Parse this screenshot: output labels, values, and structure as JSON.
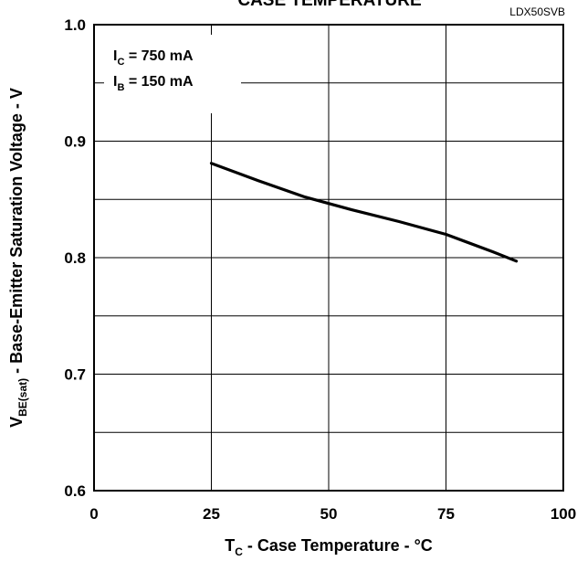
{
  "chart_data": {
    "type": "line",
    "title": "CASE TEMPERATURE",
    "code": "LDX50SVB",
    "xlabel": {
      "main": "T",
      "sub": "C",
      "rest": " - Case Temperature - °C"
    },
    "ylabel": {
      "main": "V",
      "sub": "BE(sat)",
      "rest": " - Base-Emitter Saturation Voltage - V"
    },
    "xlim": [
      0,
      100
    ],
    "ylim": [
      0.6,
      1.0
    ],
    "x_ticks": [
      0,
      25,
      50,
      75,
      100
    ],
    "y_ticks": [
      0.6,
      0.7,
      0.8,
      0.9,
      1.0
    ],
    "x_tick_labels": [
      "0",
      "25",
      "50",
      "75",
      "100"
    ],
    "y_tick_labels": [
      "0.6",
      "0.7",
      "0.8",
      "0.9",
      "1.0"
    ],
    "y_minor_grid": [
      0.65,
      0.75,
      0.85,
      0.95
    ],
    "grid": true,
    "annotations": [
      {
        "main": "I",
        "sub": "C",
        "rest": " = 750 mA"
      },
      {
        "main": "I",
        "sub": "B",
        "rest": " = 150 mA"
      }
    ],
    "series": [
      {
        "x": [
          25,
          35,
          45,
          55,
          65,
          75,
          85,
          90
        ],
        "y": [
          0.881,
          0.866,
          0.852,
          0.841,
          0.831,
          0.82,
          0.805,
          0.797
        ]
      }
    ],
    "colors": {
      "line": "#000000",
      "grid": "#000000"
    }
  }
}
